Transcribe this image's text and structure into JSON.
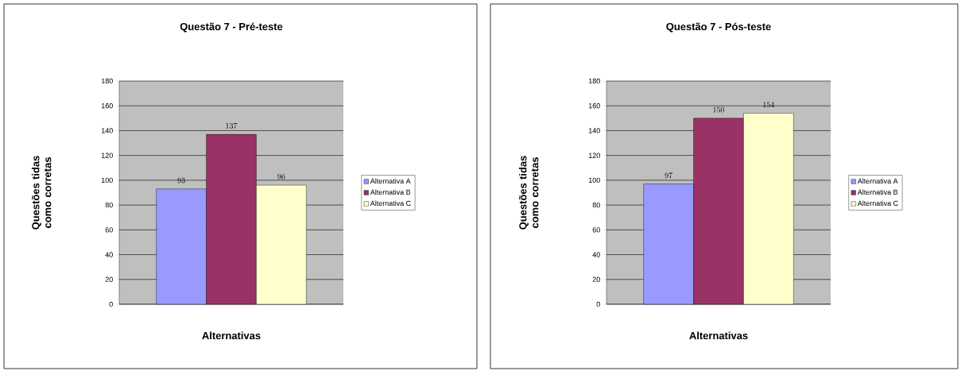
{
  "chart_data": [
    {
      "type": "bar",
      "title": "Questão 7 - Pré-teste",
      "xlabel": "Alternativas",
      "ylabel": "Questões tidas como corretas",
      "categories": [
        null
      ],
      "series": [
        {
          "name": "Alternativa A",
          "color": "#9999ff",
          "values": [
            93
          ]
        },
        {
          "name": "Alternativa B",
          "color": "#993366",
          "values": [
            137
          ]
        },
        {
          "name": "Alternativa C",
          "color": "#ffffcc",
          "values": [
            96
          ]
        }
      ],
      "ylim": [
        0,
        180
      ],
      "yticks": [
        0,
        20,
        40,
        60,
        80,
        100,
        120,
        140,
        160,
        180
      ],
      "grid": "y",
      "legend": "right",
      "data_labels": true
    },
    {
      "type": "bar",
      "title": "Questão 7 - Pós-teste",
      "xlabel": "Alternativas",
      "ylabel": "Questões tidas como corretas",
      "categories": [
        null
      ],
      "series": [
        {
          "name": "Alternativa A",
          "color": "#9999ff",
          "values": [
            97
          ]
        },
        {
          "name": "Alternativa B",
          "color": "#993366",
          "values": [
            150
          ]
        },
        {
          "name": "Alternativa C",
          "color": "#ffffcc",
          "values": [
            154
          ]
        }
      ],
      "ylim": [
        0,
        180
      ],
      "yticks": [
        0,
        20,
        40,
        60,
        80,
        100,
        120,
        140,
        160,
        180
      ],
      "grid": "y",
      "legend": "right",
      "data_labels": true
    }
  ]
}
